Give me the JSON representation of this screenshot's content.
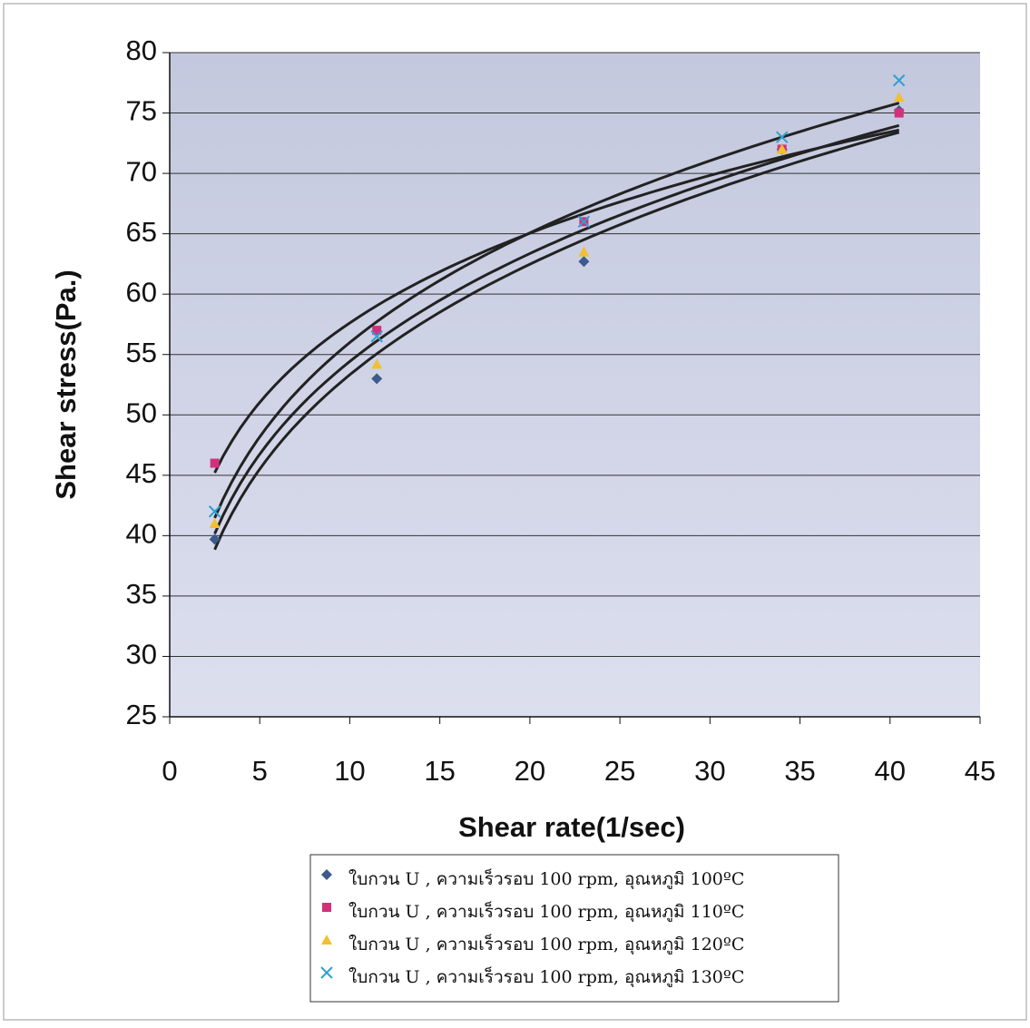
{
  "chart_data": {
    "type": "scatter",
    "trendline": "power",
    "x_label": "Shear rate(1/sec)",
    "y_label": "Shear stress(Pa.)",
    "x": [
      2.5,
      11.5,
      23,
      34,
      40.5
    ],
    "series": [
      {
        "name": "ใบกวน U , ความเร็วรอบ 100 rpm, อุณหภูมิ 100ºC",
        "color": "#3d5a8c",
        "marker": "diamond",
        "values": [
          39.7,
          53,
          62.7,
          72,
          75.2
        ]
      },
      {
        "name": "ใบกวน U , ความเร็วรอบ 100 rpm, อุณหภูมิ 110ºC",
        "color": "#d3307c",
        "marker": "square",
        "values": [
          46,
          57,
          66,
          72,
          75
        ]
      },
      {
        "name": "ใบกวน U , ความเร็วรอบ 100 rpm, อุณหภูมิ 120ºC",
        "color": "#f0c032",
        "marker": "triangle",
        "values": [
          41,
          54.2,
          63.5,
          72,
          76.3
        ]
      },
      {
        "name": "ใบกวน U , ความเร็วรอบ 100 rpm, อุณหภูมิ 130ºC",
        "color": "#2fa0d0",
        "marker": "x",
        "values": [
          42,
          56.5,
          66,
          73,
          77.7
        ]
      }
    ],
    "xlim": [
      0,
      45
    ],
    "xticks": [
      0,
      5,
      10,
      15,
      20,
      25,
      30,
      35,
      40,
      45
    ],
    "ylim": [
      25,
      80
    ],
    "yticks": [
      25,
      30,
      35,
      40,
      45,
      50,
      55,
      60,
      65,
      70,
      75,
      80
    ],
    "grid": true
  }
}
